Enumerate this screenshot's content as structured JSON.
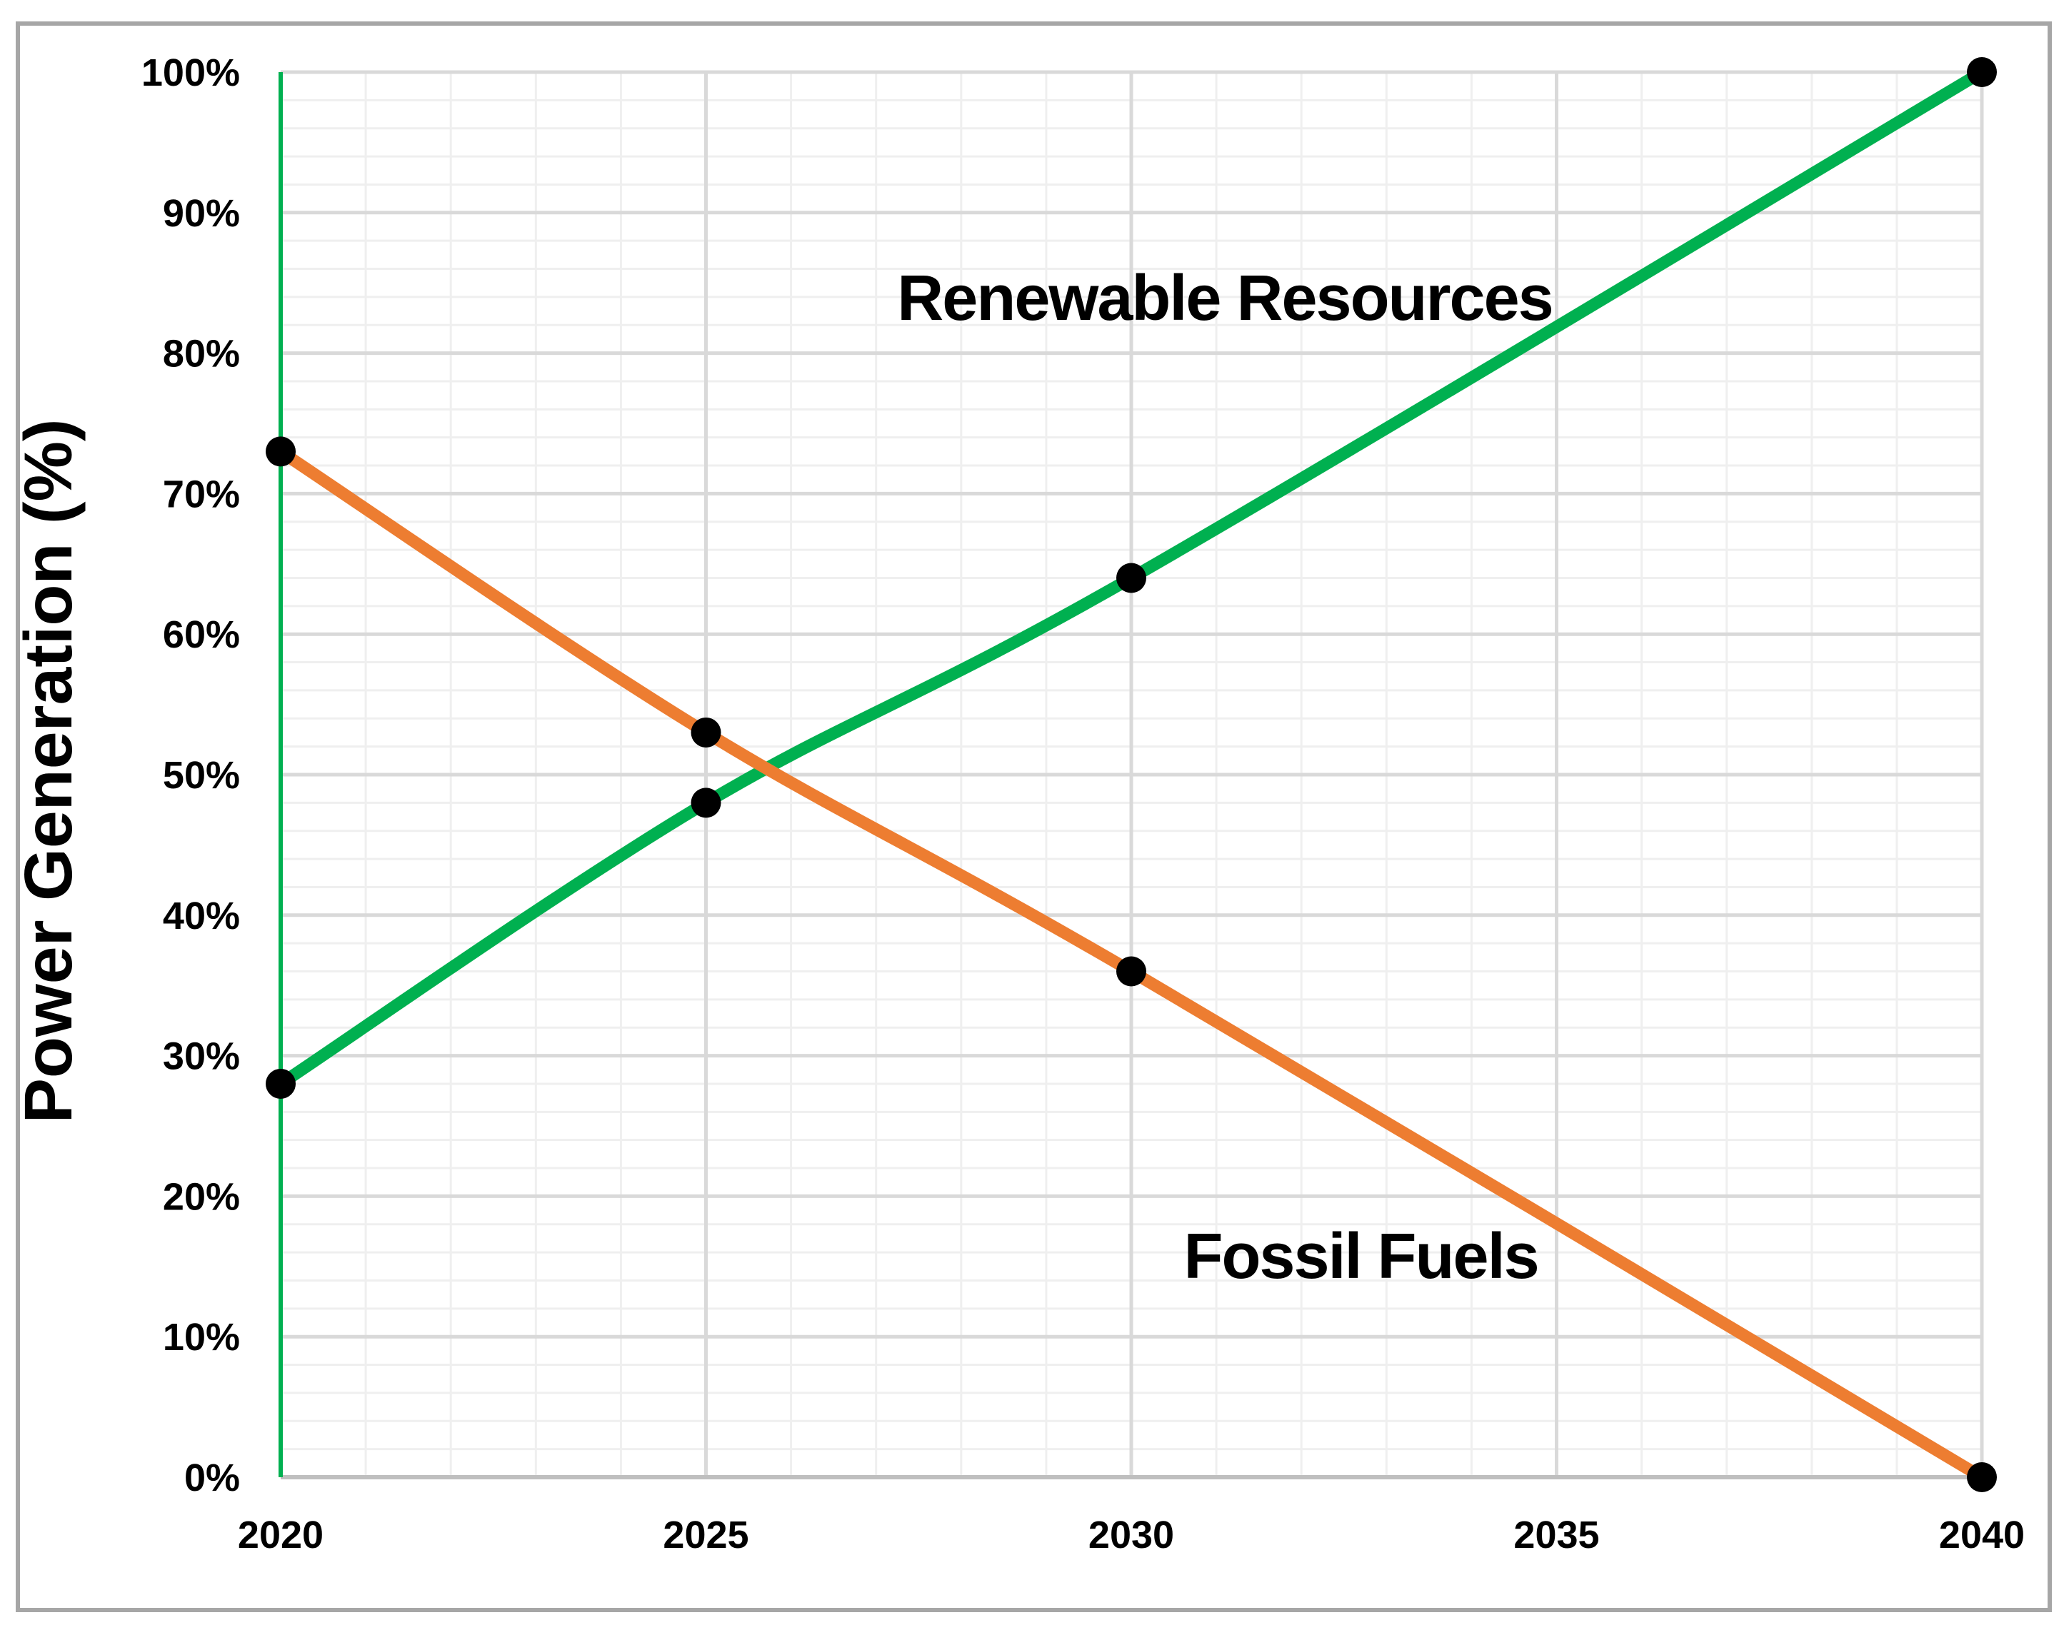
{
  "chart_data": {
    "type": "line",
    "title": "",
    "xlabel": "",
    "ylabel": "Power Generation (%)",
    "xlim": [
      2020,
      2040
    ],
    "ylim": [
      0,
      100
    ],
    "x_ticks": [
      2020,
      2025,
      2030,
      2035,
      2040
    ],
    "x_tick_labels": [
      "2020",
      "2025",
      "2030",
      "2035",
      "2040"
    ],
    "y_ticks": [
      0,
      10,
      20,
      30,
      40,
      50,
      60,
      70,
      80,
      90,
      100
    ],
    "y_tick_labels": [
      "0%",
      "10%",
      "20%",
      "30%",
      "40%",
      "50%",
      "60%",
      "70%",
      "80%",
      "90%",
      "100%"
    ],
    "grid": {
      "shown": true,
      "minor_x_step_years": 1,
      "minor_y_step_percent": 2,
      "major_x_step_years": 5,
      "major_y_step_percent": 10,
      "minor_color": "#EFEFEF",
      "major_color": "#D9D9D9"
    },
    "axes": {
      "y_axis_line_color": "#00B050",
      "x_axis_line_color": "#BFBFBF"
    },
    "series": [
      {
        "name": "Renewable Resources",
        "color": "#00B050",
        "smooth": true,
        "marker": "circle",
        "marker_color": "#000000",
        "x": [
          2020,
          2025,
          2030,
          2040
        ],
        "values": [
          28,
          48,
          64,
          100
        ],
        "label": "Renewable Resources",
        "label_anchor": {
          "x_year": 2031.1,
          "y_percent": 84.0
        }
      },
      {
        "name": "Fossil Fuels",
        "color": "#ED7D31",
        "smooth": true,
        "marker": "circle",
        "marker_color": "#000000",
        "x": [
          2020,
          2025,
          2030,
          2040
        ],
        "values": [
          73,
          53,
          36,
          0
        ],
        "label": "Fossil Fuels",
        "label_anchor": {
          "x_year": 2032.7,
          "y_percent": 15.8
        }
      }
    ],
    "legend_position": "none",
    "background": "#FFFFFF",
    "border_color": "#A6A6A6"
  }
}
